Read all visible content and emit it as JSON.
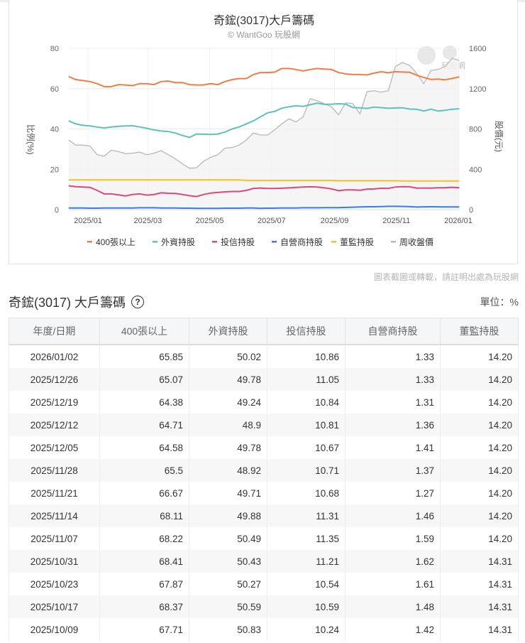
{
  "chart_data": {
    "type": "line",
    "title": "奇鋐(3017)大戶籌碼",
    "subtitle": "© WantGoo 玩股網",
    "watermark": "玩股網",
    "ylabel_left": "比例(%)",
    "ylabel_right": "股價(元)",
    "ylim_left": [
      0,
      80
    ],
    "ylim_right": [
      0,
      1600
    ],
    "yticks_left": [
      "0",
      "20",
      "40",
      "60",
      "80"
    ],
    "yticks_right": [
      "0",
      "400",
      "800",
      "1200",
      "1600"
    ],
    "xticks": [
      "2025/01",
      "2025/03",
      "2025/05",
      "2025/07",
      "2025/09",
      "2025/11",
      "2026/01"
    ],
    "x_start": "2024/12/13",
    "x_step_days": 7,
    "grid": true,
    "legend_position": "bottom",
    "series": [
      {
        "name": "400張以上",
        "color": "#f07c4a",
        "axis": "left",
        "values": [
          66,
          64.5,
          64,
          63.5,
          62.5,
          61,
          61,
          62,
          61.8,
          61.5,
          62.5,
          62.5,
          62,
          63.5,
          63.8,
          63,
          63,
          62,
          61.8,
          61.8,
          62.5,
          62,
          63.5,
          64.5,
          65,
          65,
          67,
          68,
          68,
          68.2,
          70,
          70,
          69.5,
          68.8,
          69.5,
          70,
          69.7,
          69.5,
          68,
          67.3,
          67,
          67,
          66.8,
          67.71,
          68.37,
          67.87,
          68.41,
          68.22,
          68.11,
          66.67,
          65.5,
          64.58,
          64.71,
          64.38,
          65.07,
          65.85
        ]
      },
      {
        "name": "外資持股",
        "color": "#5fc2b6",
        "axis": "left",
        "values": [
          44,
          42.5,
          41.8,
          41.5,
          41,
          40.5,
          41,
          41.3,
          41.5,
          41.6,
          41,
          40.3,
          39.5,
          39,
          38.7,
          38,
          36.8,
          35.8,
          37.5,
          37.4,
          37.3,
          37.5,
          38.5,
          40,
          41,
          42.5,
          44,
          46,
          48,
          48.7,
          50.3,
          51,
          51.5,
          51.2,
          52,
          52.8,
          52.2,
          52.3,
          52.5,
          52.3,
          50.6,
          50.5,
          50.2,
          50.83,
          50.59,
          50.27,
          50.43,
          50.49,
          49.88,
          49.71,
          48.92,
          49.78,
          48.9,
          49.24,
          49.78,
          50.02
        ]
      },
      {
        "name": "投信持股",
        "color": "#d9487e",
        "axis": "left",
        "values": [
          11.8,
          11.4,
          11.2,
          11,
          9.5,
          7.8,
          7.8,
          7.3,
          6.8,
          7.5,
          7.8,
          7.2,
          7.5,
          8.3,
          8.1,
          8,
          7.5,
          6.9,
          6.5,
          7.5,
          8.2,
          8.5,
          8.8,
          9,
          9,
          9.5,
          10.5,
          10.7,
          10.5,
          10.5,
          10.6,
          10.8,
          11,
          11.2,
          11.3,
          11.2,
          10.8,
          10.3,
          9.4,
          9.8,
          9.8,
          9.6,
          10.2,
          10.24,
          10.59,
          10.54,
          11.21,
          11.35,
          11.31,
          10.68,
          10.71,
          10.67,
          10.81,
          10.84,
          11.05,
          10.86
        ]
      },
      {
        "name": "自營商持股",
        "color": "#3b7ddd",
        "axis": "left",
        "values": [
          0.8,
          0.8,
          0.8,
          0.7,
          0.7,
          0.8,
          0.8,
          0.8,
          0.8,
          0.8,
          0.9,
          0.9,
          0.9,
          0.8,
          0.8,
          0.8,
          0.7,
          0.7,
          0.6,
          0.6,
          0.6,
          0.6,
          0.7,
          0.7,
          0.7,
          0.8,
          0.8,
          0.6,
          0.7,
          0.7,
          0.8,
          0.8,
          0.8,
          0.9,
          0.9,
          0.9,
          1,
          1,
          1,
          1.1,
          1.2,
          1.3,
          1.4,
          1.42,
          1.48,
          1.61,
          1.62,
          1.59,
          1.46,
          1.27,
          1.37,
          1.41,
          1.36,
          1.31,
          1.33,
          1.33
        ]
      },
      {
        "name": "董監持股",
        "color": "#f5c21b",
        "axis": "left",
        "values": [
          14.7,
          14.7,
          14.7,
          14.7,
          14.7,
          14.7,
          14.7,
          14.7,
          14.7,
          14.7,
          14.7,
          14.7,
          14.7,
          14.7,
          14.7,
          14.7,
          14.7,
          14.7,
          14.7,
          14.7,
          14.7,
          14.7,
          14.7,
          14.7,
          14.7,
          14.5,
          14.5,
          14.5,
          14.5,
          14.5,
          14.5,
          14.5,
          14.5,
          14.5,
          14.5,
          14.5,
          14.5,
          14.5,
          14.31,
          14.31,
          14.31,
          14.31,
          14.31,
          14.31,
          14.31,
          14.31,
          14.31,
          14.2,
          14.2,
          14.2,
          14.2,
          14.2,
          14.2,
          14.2,
          14.2,
          14.2
        ]
      },
      {
        "name": "周收盤價",
        "color": "#b8b8b8",
        "axis": "right",
        "values": [
          690,
          640,
          640,
          630,
          545,
          530,
          590,
          575,
          555,
          560,
          570,
          545,
          560,
          585,
          545,
          505,
          455,
          410,
          415,
          480,
          520,
          545,
          610,
          615,
          640,
          690,
          760,
          740,
          740,
          790,
          850,
          900,
          870,
          920,
          1100,
          1080,
          1050,
          1020,
          940,
          1060,
          1050,
          950,
          1170,
          1180,
          1165,
          1180,
          1420,
          1460,
          1430,
          1350,
          1250,
          1380,
          1390,
          1420,
          1500,
          1480
        ]
      }
    ]
  },
  "footnote": "圖表截圖或轉載，請註明出處為玩股網",
  "table": {
    "title": "奇鋐(3017) 大戶籌碼",
    "help_icon": "?",
    "unit": "單位：%",
    "headers": [
      "年度/日期",
      "400張以上",
      "外資持股",
      "投信持股",
      "自營商持股",
      "董監持股"
    ],
    "rows": [
      [
        "2026/01/02",
        "65.85",
        "50.02",
        "10.86",
        "1.33",
        "14.20"
      ],
      [
        "2025/12/26",
        "65.07",
        "49.78",
        "11.05",
        "1.33",
        "14.20"
      ],
      [
        "2025/12/19",
        "64.38",
        "49.24",
        "10.84",
        "1.31",
        "14.20"
      ],
      [
        "2025/12/12",
        "64.71",
        "48.9",
        "10.81",
        "1.36",
        "14.20"
      ],
      [
        "2025/12/05",
        "64.58",
        "49.78",
        "10.67",
        "1.41",
        "14.20"
      ],
      [
        "2025/11/28",
        "65.5",
        "48.92",
        "10.71",
        "1.37",
        "14.20"
      ],
      [
        "2025/11/21",
        "66.67",
        "49.71",
        "10.68",
        "1.27",
        "14.20"
      ],
      [
        "2025/11/14",
        "68.11",
        "49.88",
        "11.31",
        "1.46",
        "14.20"
      ],
      [
        "2025/11/07",
        "68.22",
        "50.49",
        "11.35",
        "1.59",
        "14.20"
      ],
      [
        "2025/10/31",
        "68.41",
        "50.43",
        "11.21",
        "1.62",
        "14.31"
      ],
      [
        "2025/10/23",
        "67.87",
        "50.27",
        "10.54",
        "1.61",
        "14.31"
      ],
      [
        "2025/10/17",
        "68.37",
        "50.59",
        "10.59",
        "1.48",
        "14.31"
      ],
      [
        "2025/10/09",
        "67.71",
        "50.83",
        "10.24",
        "1.42",
        "14.31"
      ]
    ]
  }
}
